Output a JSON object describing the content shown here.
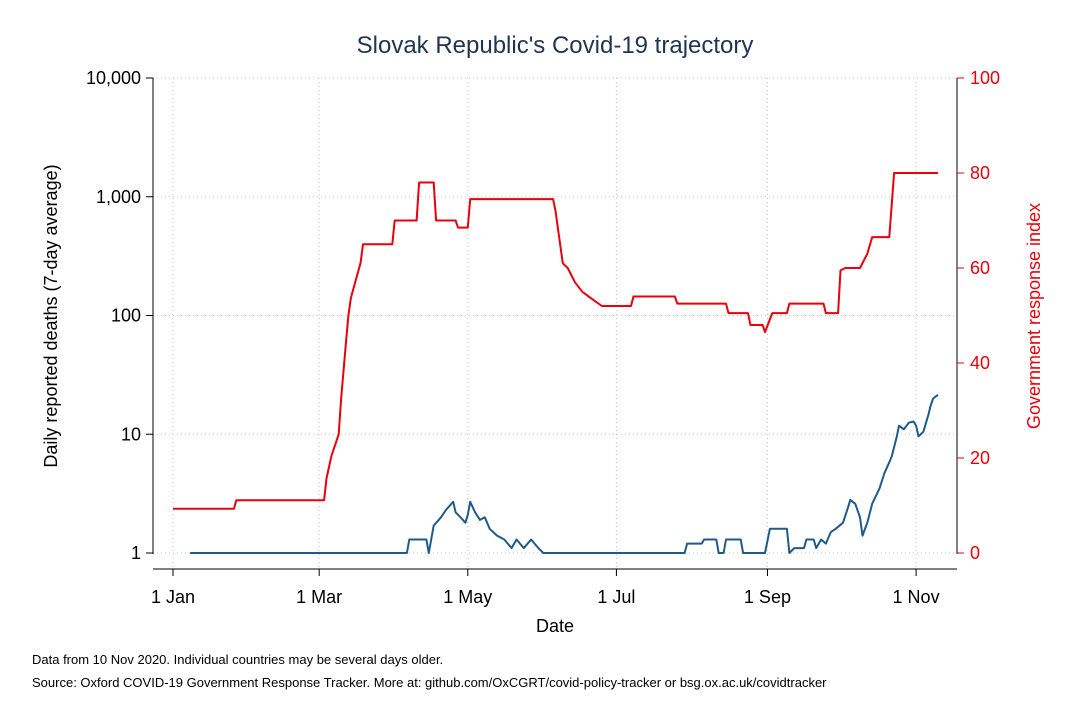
{
  "chart_data": {
    "type": "line",
    "title": "Slovak Republic's Covid-19 trajectory",
    "xlabel": "Date",
    "ylabel_left": "Daily reported deaths (7-day average)",
    "ylabel_right": "Government response index",
    "x_ticks": [
      "1 Jan",
      "1 Mar",
      "1 May",
      "1 Jul",
      "1 Sep",
      "1 Nov"
    ],
    "y_left_ticks": [
      "1",
      "10",
      "100",
      "1,000",
      "10,000"
    ],
    "y_left_scale": "log",
    "y_left_range": [
      1,
      10000
    ],
    "y_right_ticks": [
      "0",
      "20",
      "40",
      "60",
      "80",
      "100"
    ],
    "y_right_range": [
      0,
      100
    ],
    "x_range": [
      "2020-01-01",
      "2020-11-10"
    ],
    "grid": true,
    "colors": {
      "deaths": "#1f5a8a",
      "response": "#e8000b",
      "title": "#1f3552"
    },
    "series": [
      {
        "axis": "right",
        "points": [
          [
            "2020-01-01",
            9.3
          ],
          [
            "2020-01-26",
            9.3
          ],
          [
            "2020-01-27",
            11.1
          ],
          [
            "2020-03-03",
            11.1
          ],
          [
            "2020-03-04",
            15.7
          ],
          [
            "2020-03-06",
            20.4
          ],
          [
            "2020-03-09",
            25.0
          ],
          [
            "2020-03-10",
            32.4
          ],
          [
            "2020-03-12",
            44.4
          ],
          [
            "2020-03-13",
            50.0
          ],
          [
            "2020-03-14",
            53.7
          ],
          [
            "2020-03-16",
            57.4
          ],
          [
            "2020-03-18",
            61.1
          ],
          [
            "2020-03-19",
            65.0
          ],
          [
            "2020-03-31",
            65.0
          ],
          [
            "2020-04-01",
            70.0
          ],
          [
            "2020-04-10",
            70.0
          ],
          [
            "2020-04-11",
            78.0
          ],
          [
            "2020-04-17",
            78.0
          ],
          [
            "2020-04-18",
            70.0
          ],
          [
            "2020-04-26",
            70.0
          ],
          [
            "2020-04-27",
            68.5
          ],
          [
            "2020-05-01",
            68.5
          ],
          [
            "2020-05-02",
            74.5
          ],
          [
            "2020-06-05",
            74.5
          ],
          [
            "2020-06-06",
            72.0
          ],
          [
            "2020-06-09",
            61.0
          ],
          [
            "2020-06-11",
            60.0
          ],
          [
            "2020-06-14",
            57.0
          ],
          [
            "2020-06-17",
            55.0
          ],
          [
            "2020-06-21",
            53.5
          ],
          [
            "2020-06-25",
            52.0
          ],
          [
            "2020-07-07",
            52.0
          ],
          [
            "2020-07-08",
            54.0
          ],
          [
            "2020-07-25",
            54.0
          ],
          [
            "2020-07-26",
            52.5
          ],
          [
            "2020-08-15",
            52.5
          ],
          [
            "2020-08-16",
            50.5
          ],
          [
            "2020-08-24",
            50.5
          ],
          [
            "2020-08-25",
            48.0
          ],
          [
            "2020-08-30",
            48.0
          ],
          [
            "2020-08-31",
            46.5
          ],
          [
            "2020-09-03",
            50.5
          ],
          [
            "2020-09-09",
            50.5
          ],
          [
            "2020-09-10",
            52.5
          ],
          [
            "2020-09-24",
            52.5
          ],
          [
            "2020-09-25",
            50.5
          ],
          [
            "2020-09-30",
            50.5
          ],
          [
            "2020-10-01",
            59.5
          ],
          [
            "2020-10-03",
            60.0
          ],
          [
            "2020-10-09",
            60.0
          ],
          [
            "2020-10-12",
            63.0
          ],
          [
            "2020-10-14",
            66.5
          ],
          [
            "2020-10-21",
            66.5
          ],
          [
            "2020-10-23",
            80.0
          ],
          [
            "2020-11-10",
            80.0
          ]
        ]
      },
      {
        "axis": "left",
        "points": [
          [
            "2020-01-08",
            1
          ],
          [
            "2020-04-06",
            1
          ],
          [
            "2020-04-07",
            1.3
          ],
          [
            "2020-04-14",
            1.3
          ],
          [
            "2020-04-15",
            1
          ],
          [
            "2020-04-16",
            1.3
          ],
          [
            "2020-04-17",
            1.7
          ],
          [
            "2020-04-20",
            2.0
          ],
          [
            "2020-04-22",
            2.3
          ],
          [
            "2020-04-25",
            2.7
          ],
          [
            "2020-04-26",
            2.2
          ],
          [
            "2020-04-28",
            2.0
          ],
          [
            "2020-04-30",
            1.8
          ],
          [
            "2020-05-01",
            2.1
          ],
          [
            "2020-05-02",
            2.7
          ],
          [
            "2020-05-04",
            2.2
          ],
          [
            "2020-05-06",
            1.9
          ],
          [
            "2020-05-08",
            2.0
          ],
          [
            "2020-05-10",
            1.6
          ],
          [
            "2020-05-13",
            1.4
          ],
          [
            "2020-05-16",
            1.3
          ],
          [
            "2020-05-19",
            1.1
          ],
          [
            "2020-05-21",
            1.3
          ],
          [
            "2020-05-24",
            1.1
          ],
          [
            "2020-05-27",
            1.3
          ],
          [
            "2020-05-30",
            1.1
          ],
          [
            "2020-06-01",
            1
          ],
          [
            "2020-07-29",
            1
          ],
          [
            "2020-07-30",
            1.2
          ],
          [
            "2020-08-05",
            1.2
          ],
          [
            "2020-08-06",
            1.3
          ],
          [
            "2020-08-11",
            1.3
          ],
          [
            "2020-08-12",
            1
          ],
          [
            "2020-08-14",
            1
          ],
          [
            "2020-08-15",
            1.3
          ],
          [
            "2020-08-21",
            1.3
          ],
          [
            "2020-08-22",
            1
          ],
          [
            "2020-08-31",
            1
          ],
          [
            "2020-09-02",
            1.6
          ],
          [
            "2020-09-09",
            1.6
          ],
          [
            "2020-09-10",
            1
          ],
          [
            "2020-09-12",
            1.1
          ],
          [
            "2020-09-16",
            1.1
          ],
          [
            "2020-09-17",
            1.3
          ],
          [
            "2020-09-20",
            1.3
          ],
          [
            "2020-09-21",
            1.1
          ],
          [
            "2020-09-23",
            1.3
          ],
          [
            "2020-09-25",
            1.2
          ],
          [
            "2020-09-27",
            1.5
          ],
          [
            "2020-09-29",
            1.6
          ],
          [
            "2020-10-02",
            1.8
          ],
          [
            "2020-10-04",
            2.4
          ],
          [
            "2020-10-05",
            2.8
          ],
          [
            "2020-10-07",
            2.6
          ],
          [
            "2020-10-09",
            2.0
          ],
          [
            "2020-10-10",
            1.4
          ],
          [
            "2020-10-12",
            1.8
          ],
          [
            "2020-10-14",
            2.6
          ],
          [
            "2020-10-17",
            3.5
          ],
          [
            "2020-10-19",
            4.7
          ],
          [
            "2020-10-21",
            5.8
          ],
          [
            "2020-10-22",
            6.5
          ],
          [
            "2020-10-23",
            7.8
          ],
          [
            "2020-10-24",
            9.4
          ],
          [
            "2020-10-25",
            11.8
          ],
          [
            "2020-10-27",
            11.0
          ],
          [
            "2020-10-29",
            12.5
          ],
          [
            "2020-10-31",
            12.8
          ],
          [
            "2020-11-01",
            11.8
          ],
          [
            "2020-11-02",
            9.6
          ],
          [
            "2020-11-04",
            10.5
          ],
          [
            "2020-11-06",
            14.5
          ],
          [
            "2020-11-07",
            17.5
          ],
          [
            "2020-11-08",
            20.0
          ],
          [
            "2020-11-10",
            21.5
          ]
        ]
      }
    ]
  },
  "footnote_1": "Data from 10 Nov 2020. Individual countries may be several days older.",
  "footnote_2": "Source: Oxford COVID-19 Government Response Tracker. More at: github.com/OxCGRT/covid-policy-tracker or bsg.ox.ac.uk/covidtracker"
}
